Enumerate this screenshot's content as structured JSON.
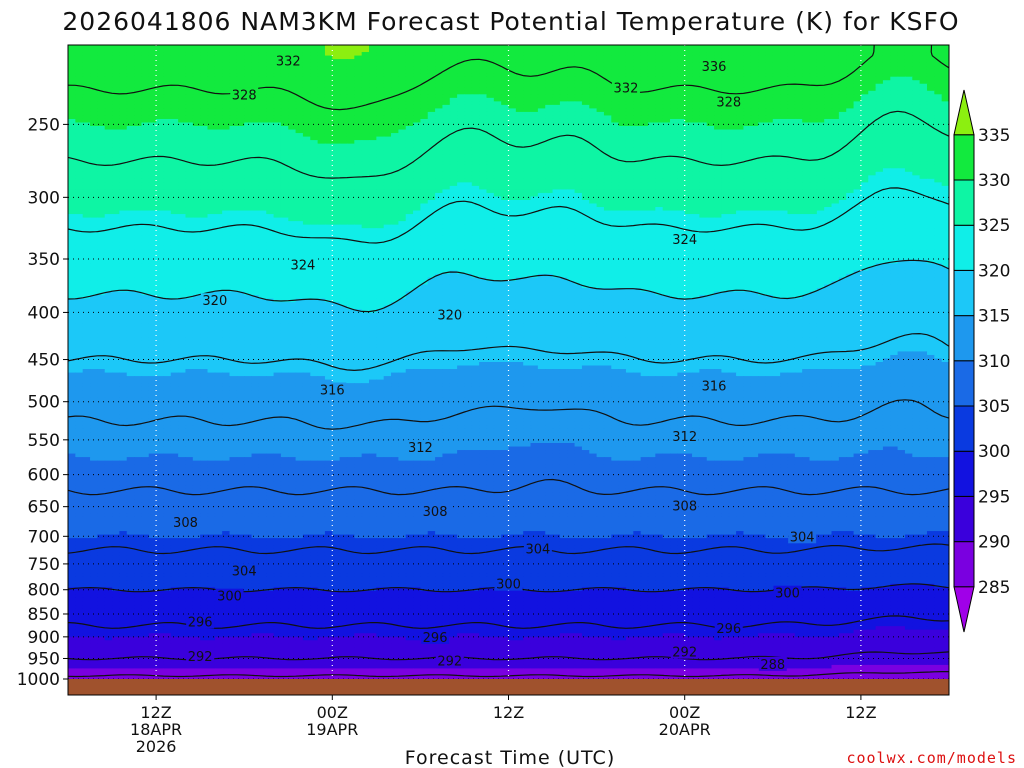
{
  "chart_data": {
    "type": "heatmap",
    "title": "2026041806 NAM3KM Forecast Potential Temperature (K) for KSFO",
    "xlabel": "Forecast Time (UTC)",
    "ylabel": "",
    "y_ticks": [
      "250",
      "300",
      "350",
      "400",
      "450",
      "500",
      "550",
      "600",
      "650",
      "700",
      "750",
      "800",
      "850",
      "900",
      "950",
      "1000"
    ],
    "x_ticks": [
      {
        "hour": 6,
        "line1": "12Z",
        "line2": "18APR",
        "line3": "2026"
      },
      {
        "hour": 18,
        "line1": "00Z",
        "line2": "19APR",
        "line3": ""
      },
      {
        "hour": 30,
        "line1": "12Z",
        "line2": "",
        "line3": ""
      },
      {
        "hour": 42,
        "line1": "00Z",
        "line2": "20APR",
        "line3": ""
      },
      {
        "hour": 54,
        "line1": "12Z",
        "line2": "",
        "line3": ""
      }
    ],
    "x_range_hours": [
      0,
      60
    ],
    "y_range_hpa": [
      205,
      1000
    ],
    "colorbar": {
      "ticks": [
        "285",
        "290",
        "295",
        "300",
        "305",
        "310",
        "315",
        "320",
        "325",
        "330",
        "335"
      ],
      "bands": [
        {
          "lo": 280,
          "hi": 285,
          "color": "#a000e8"
        },
        {
          "lo": 285,
          "hi": 290,
          "color": "#7a00e0"
        },
        {
          "lo": 290,
          "hi": 295,
          "color": "#3a00dc"
        },
        {
          "lo": 295,
          "hi": 300,
          "color": "#1212e0"
        },
        {
          "lo": 300,
          "hi": 305,
          "color": "#0a3ae0"
        },
        {
          "lo": 305,
          "hi": 310,
          "color": "#1a6ae6"
        },
        {
          "lo": 310,
          "hi": 315,
          "color": "#1e98ee"
        },
        {
          "lo": 315,
          "hi": 320,
          "color": "#1cc8f8"
        },
        {
          "lo": 320,
          "hi": 325,
          "color": "#10eee8"
        },
        {
          "lo": 325,
          "hi": 330,
          "color": "#0ef5a4"
        },
        {
          "lo": 330,
          "hi": 335,
          "color": "#12ea3e"
        },
        {
          "lo": 335,
          "hi": 340,
          "color": "#8cef10"
        }
      ]
    },
    "field_profile": {
      "pressure_hpa": [
        1000,
        975,
        950,
        900,
        850,
        800,
        750,
        700,
        650,
        600,
        550,
        500,
        450,
        400,
        350,
        300,
        250,
        210
      ],
      "theta_k": [
        287,
        290,
        292,
        295,
        297,
        300,
        303,
        305,
        307,
        309,
        311,
        313,
        316,
        319,
        322,
        326,
        330,
        334
      ]
    },
    "contour_levels": [
      288,
      292,
      296,
      300,
      304,
      308,
      312,
      316,
      320,
      324,
      328,
      332,
      336
    ],
    "contour_labels": [
      {
        "text": "332",
        "hour": 15.0,
        "hpa": 213
      },
      {
        "text": "336",
        "hour": 44.0,
        "hpa": 216
      },
      {
        "text": "332",
        "hour": 38.0,
        "hpa": 228
      },
      {
        "text": "328",
        "hour": 12.0,
        "hpa": 232
      },
      {
        "text": "328",
        "hour": 45.0,
        "hpa": 236
      },
      {
        "text": "324",
        "hour": 42.0,
        "hpa": 333
      },
      {
        "text": "324",
        "hour": 16.0,
        "hpa": 355
      },
      {
        "text": "320",
        "hour": 10.0,
        "hpa": 388
      },
      {
        "text": "320",
        "hour": 26.0,
        "hpa": 402
      },
      {
        "text": "316",
        "hour": 18.0,
        "hpa": 485
      },
      {
        "text": "316",
        "hour": 44.0,
        "hpa": 480
      },
      {
        "text": "312",
        "hour": 24.0,
        "hpa": 560
      },
      {
        "text": "312",
        "hour": 42.0,
        "hpa": 545
      },
      {
        "text": "308",
        "hour": 8.0,
        "hpa": 675
      },
      {
        "text": "308",
        "hour": 25.0,
        "hpa": 657
      },
      {
        "text": "308",
        "hour": 42.0,
        "hpa": 648
      },
      {
        "text": "304",
        "hour": 12.0,
        "hpa": 762
      },
      {
        "text": "304",
        "hour": 32.0,
        "hpa": 722
      },
      {
        "text": "304",
        "hour": 50.0,
        "hpa": 700
      },
      {
        "text": "300",
        "hour": 11.0,
        "hpa": 812
      },
      {
        "text": "300",
        "hour": 30.0,
        "hpa": 788
      },
      {
        "text": "300",
        "hour": 49.0,
        "hpa": 806
      },
      {
        "text": "296",
        "hour": 9.0,
        "hpa": 866
      },
      {
        "text": "296",
        "hour": 25.0,
        "hpa": 900
      },
      {
        "text": "296",
        "hour": 45.0,
        "hpa": 880
      },
      {
        "text": "292",
        "hour": 9.0,
        "hpa": 944
      },
      {
        "text": "292",
        "hour": 26.0,
        "hpa": 955
      },
      {
        "text": "292",
        "hour": 42.0,
        "hpa": 934
      },
      {
        "text": "288",
        "hour": 48.0,
        "hpa": 963
      }
    ]
  },
  "credit": "coolwx.com/models",
  "colors": {
    "ground": "#a0522d",
    "contour": "#111111",
    "grid": "#ffffff"
  }
}
